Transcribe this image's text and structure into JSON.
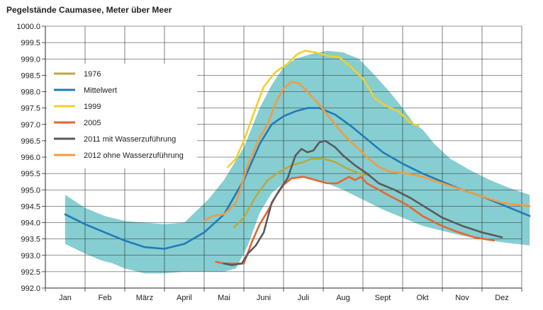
{
  "chart_data": {
    "type": "line",
    "title": "Pegelstände Caumasee, Meter über Meer",
    "categories": [
      "Jan",
      "Feb",
      "März",
      "April",
      "Mai",
      "Juni",
      "Juli",
      "Aug",
      "Sept",
      "Okt",
      "Nov",
      "Dez"
    ],
    "ylim": [
      992.0,
      1000.0
    ],
    "yticks": [
      "992.0",
      "992.5",
      "993.0",
      "993.5",
      "994.0",
      "994.5",
      "995.0",
      "995.5",
      "996.0",
      "996.5",
      "997.0",
      "997.5",
      "998.0",
      "998.5",
      "999.0",
      "999.5",
      "1000.0"
    ],
    "grid": true,
    "legend_position": "top-left",
    "band": {
      "color": "#86ced1",
      "upper": [
        [
          0,
          994.85
        ],
        [
          0.5,
          994.45
        ],
        [
          1.0,
          994.2
        ],
        [
          1.5,
          994.05
        ],
        [
          2.0,
          994.0
        ],
        [
          2.5,
          993.95
        ],
        [
          3.0,
          994.0
        ],
        [
          3.3,
          994.35
        ],
        [
          3.6,
          994.7
        ],
        [
          4.0,
          995.3
        ],
        [
          4.5,
          996.3
        ],
        [
          4.9,
          997.5
        ],
        [
          5.2,
          998.2
        ],
        [
          5.5,
          998.75
        ],
        [
          5.8,
          999.0
        ],
        [
          6.2,
          999.15
        ],
        [
          6.6,
          999.25
        ],
        [
          7.0,
          999.2
        ],
        [
          7.4,
          999.0
        ],
        [
          7.8,
          998.5
        ],
        [
          8.2,
          997.95
        ],
        [
          8.5,
          997.5
        ],
        [
          8.8,
          997.0
        ],
        [
          9.0,
          996.85
        ],
        [
          9.3,
          996.4
        ],
        [
          9.7,
          995.95
        ],
        [
          10.2,
          995.6
        ],
        [
          10.7,
          995.3
        ],
        [
          11.2,
          995.05
        ],
        [
          11.7,
          994.85
        ]
      ],
      "lower": [
        [
          0,
          993.35
        ],
        [
          0.5,
          993.05
        ],
        [
          0.9,
          992.85
        ],
        [
          1.2,
          992.75
        ],
        [
          1.5,
          992.6
        ],
        [
          2.0,
          992.45
        ],
        [
          2.5,
          992.45
        ],
        [
          3.0,
          992.5
        ],
        [
          3.5,
          992.5
        ],
        [
          4.0,
          992.5
        ],
        [
          4.3,
          992.6
        ],
        [
          4.6,
          993.3
        ],
        [
          4.9,
          994.3
        ],
        [
          5.2,
          994.9
        ],
        [
          5.6,
          995.3
        ],
        [
          6.0,
          995.4
        ],
        [
          6.5,
          995.25
        ],
        [
          7.0,
          995.0
        ],
        [
          7.5,
          994.7
        ],
        [
          8.0,
          994.4
        ],
        [
          8.5,
          994.15
        ],
        [
          9.0,
          993.9
        ],
        [
          9.5,
          993.75
        ],
        [
          10.0,
          993.6
        ],
        [
          10.5,
          993.5
        ],
        [
          11.0,
          993.4
        ],
        [
          11.7,
          993.3
        ]
      ]
    },
    "series": [
      {
        "name": "1976",
        "color": "#b8a943",
        "points": [
          [
            4.25,
            993.85
          ],
          [
            4.5,
            994.15
          ],
          [
            4.8,
            994.8
          ],
          [
            5.1,
            995.3
          ],
          [
            5.4,
            995.55
          ],
          [
            5.7,
            995.75
          ],
          [
            6.0,
            995.85
          ],
          [
            6.2,
            995.95
          ],
          [
            6.5,
            995.95
          ],
          [
            6.8,
            995.85
          ],
          [
            7.1,
            995.65
          ],
          [
            7.4,
            995.5
          ],
          [
            7.6,
            995.45
          ]
        ]
      },
      {
        "name": "Mittelwert",
        "color": "#1f7bb8",
        "points": [
          [
            0,
            994.25
          ],
          [
            0.5,
            993.95
          ],
          [
            1.0,
            993.7
          ],
          [
            1.5,
            993.45
          ],
          [
            2.0,
            993.25
          ],
          [
            2.5,
            993.2
          ],
          [
            3.0,
            993.35
          ],
          [
            3.5,
            993.7
          ],
          [
            4.0,
            994.25
          ],
          [
            4.5,
            995.3
          ],
          [
            4.9,
            996.4
          ],
          [
            5.2,
            997.0
          ],
          [
            5.5,
            997.25
          ],
          [
            5.8,
            997.4
          ],
          [
            6.1,
            997.5
          ],
          [
            6.4,
            997.5
          ],
          [
            6.8,
            997.3
          ],
          [
            7.2,
            996.95
          ],
          [
            7.6,
            996.55
          ],
          [
            8.0,
            996.15
          ],
          [
            8.5,
            995.8
          ],
          [
            9.0,
            995.5
          ],
          [
            9.5,
            995.25
          ],
          [
            10.0,
            995.0
          ],
          [
            10.5,
            994.8
          ],
          [
            11.0,
            994.55
          ],
          [
            11.7,
            994.2
          ]
        ]
      },
      {
        "name": "1999",
        "color": "#f2cf2a",
        "points": [
          [
            4.1,
            995.7
          ],
          [
            4.3,
            995.95
          ],
          [
            4.5,
            996.5
          ],
          [
            4.8,
            997.5
          ],
          [
            5.0,
            998.15
          ],
          [
            5.3,
            998.6
          ],
          [
            5.6,
            998.85
          ],
          [
            5.85,
            999.15
          ],
          [
            6.05,
            999.25
          ],
          [
            6.3,
            999.2
          ],
          [
            6.6,
            999.1
          ],
          [
            6.9,
            999.05
          ],
          [
            7.2,
            998.75
          ],
          [
            7.5,
            998.4
          ],
          [
            7.8,
            997.8
          ],
          [
            8.1,
            997.55
          ],
          [
            8.4,
            997.4
          ],
          [
            8.7,
            997.05
          ],
          [
            8.9,
            996.95
          ]
        ]
      },
      {
        "name": "2005",
        "color": "#e8642e",
        "points": [
          [
            3.8,
            992.8
          ],
          [
            4.0,
            992.75
          ],
          [
            4.3,
            992.75
          ],
          [
            4.5,
            992.75
          ],
          [
            4.7,
            993.4
          ],
          [
            4.9,
            993.95
          ],
          [
            5.1,
            994.35
          ],
          [
            5.3,
            994.8
          ],
          [
            5.5,
            995.15
          ],
          [
            5.7,
            995.35
          ],
          [
            6.0,
            995.4
          ],
          [
            6.3,
            995.3
          ],
          [
            6.6,
            995.2
          ],
          [
            6.85,
            995.2
          ],
          [
            7.0,
            995.3
          ],
          [
            7.15,
            995.4
          ],
          [
            7.3,
            995.3
          ],
          [
            7.45,
            995.4
          ],
          [
            7.6,
            995.2
          ],
          [
            7.9,
            995.0
          ],
          [
            8.2,
            994.8
          ],
          [
            8.6,
            994.55
          ],
          [
            9.0,
            994.2
          ],
          [
            9.4,
            993.95
          ],
          [
            9.8,
            993.75
          ],
          [
            10.3,
            993.55
          ],
          [
            10.8,
            993.45
          ]
        ]
      },
      {
        "name": "2011 mit Wasserzuführung",
        "color": "#5a5a5a",
        "points": [
          [
            4.0,
            992.75
          ],
          [
            4.2,
            992.7
          ],
          [
            4.45,
            992.75
          ],
          [
            4.6,
            993.05
          ],
          [
            4.8,
            993.3
          ],
          [
            5.0,
            993.7
          ],
          [
            5.2,
            994.6
          ],
          [
            5.4,
            995.0
          ],
          [
            5.6,
            995.35
          ],
          [
            5.8,
            996.05
          ],
          [
            5.95,
            996.25
          ],
          [
            6.1,
            996.15
          ],
          [
            6.25,
            996.2
          ],
          [
            6.4,
            996.45
          ],
          [
            6.55,
            996.5
          ],
          [
            6.8,
            996.3
          ],
          [
            7.0,
            996.05
          ],
          [
            7.3,
            995.75
          ],
          [
            7.6,
            995.5
          ],
          [
            7.9,
            995.2
          ],
          [
            8.3,
            995.0
          ],
          [
            8.7,
            994.75
          ],
          [
            9.1,
            994.45
          ],
          [
            9.5,
            994.15
          ],
          [
            10.0,
            993.9
          ],
          [
            10.5,
            993.7
          ],
          [
            11.0,
            993.55
          ]
        ]
      },
      {
        "name": "2012 ohne Wasserzuführung",
        "color": "#f39b3e",
        "points": [
          [
            3.5,
            994.05
          ],
          [
            3.7,
            994.2
          ],
          [
            4.0,
            994.25
          ],
          [
            4.3,
            994.6
          ],
          [
            4.6,
            995.75
          ],
          [
            4.9,
            996.6
          ],
          [
            5.1,
            997.0
          ],
          [
            5.3,
            997.65
          ],
          [
            5.5,
            998.1
          ],
          [
            5.7,
            998.3
          ],
          [
            5.9,
            998.25
          ],
          [
            6.1,
            998.0
          ],
          [
            6.4,
            997.6
          ],
          [
            6.7,
            997.15
          ],
          [
            7.0,
            996.7
          ],
          [
            7.3,
            996.35
          ],
          [
            7.6,
            996.0
          ],
          [
            7.9,
            995.7
          ],
          [
            8.2,
            995.55
          ],
          [
            8.6,
            995.5
          ],
          [
            9.0,
            995.4
          ],
          [
            9.5,
            995.2
          ],
          [
            10.0,
            995.0
          ],
          [
            10.5,
            994.8
          ],
          [
            11.0,
            994.6
          ],
          [
            11.7,
            994.5
          ]
        ]
      }
    ],
    "legend_order": [
      "1976",
      "Mittelwert",
      "1999",
      "2005",
      "2011 mit Wasserzuführung",
      "2012 ohne Wasserzuführung"
    ]
  }
}
